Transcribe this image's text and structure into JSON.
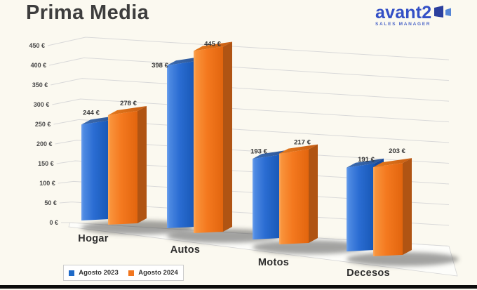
{
  "page": {
    "title": "Prima Media"
  },
  "logo": {
    "text": "avant2",
    "subtext": "SALES MANAGER",
    "brand_color": "#3450c6"
  },
  "chart_data": {
    "type": "bar",
    "style": "3d-clustered-column",
    "title": "Prima Media",
    "categories": [
      "Hogar",
      "Autos",
      "Motos",
      "Decesos"
    ],
    "series": [
      {
        "name": "Agosto 2023",
        "color": "#1e6ac8",
        "values": [
          244,
          398,
          193,
          191
        ]
      },
      {
        "name": "Agosto 2024",
        "color": "#f1761f",
        "values": [
          278,
          445,
          217,
          203
        ]
      }
    ],
    "value_suffix": " €",
    "y_ticks": [
      0,
      50,
      100,
      150,
      200,
      250,
      300,
      350,
      400,
      450
    ],
    "ylim": [
      0,
      450
    ],
    "grid": true,
    "data_labels": true,
    "legend_position": "bottom-left"
  },
  "colors": {
    "background": "#fbf9f0",
    "gridline": "#d9d9d9",
    "bottom_border": "#0c0c0c",
    "title_text": "#3d3d3d",
    "label_text": "#363636"
  }
}
